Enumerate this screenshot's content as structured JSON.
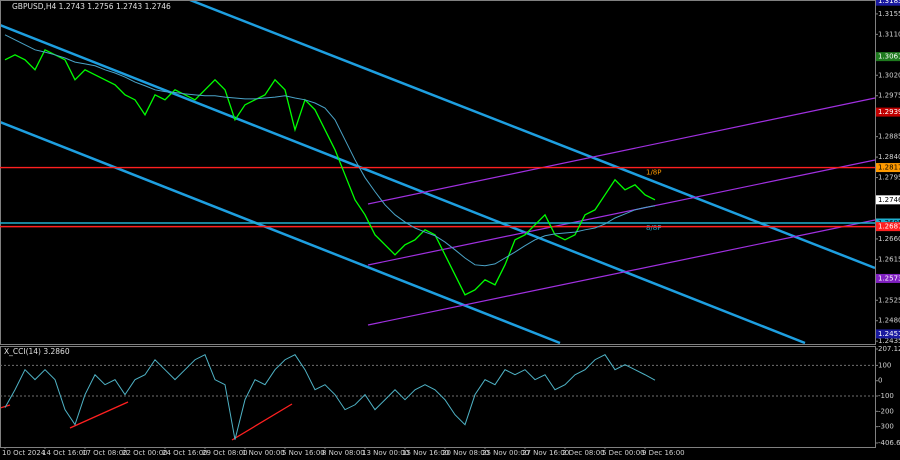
{
  "chart_data": [
    {
      "type": "line",
      "title": "GBPUSD,H4  1.2743 1.2756 1.2743 1.2746",
      "categories": [
        "10 Oct 2024",
        null,
        null,
        null,
        "14 Oct 16:00",
        null,
        null,
        null,
        "17 Oct 08:00",
        null,
        null,
        null,
        "22 Oct 00:00",
        null,
        null,
        null,
        "24 Oct 16:00",
        null,
        null,
        null,
        "29 Oct 08:00",
        null,
        null,
        null,
        "1 Nov 00:00",
        null,
        null,
        null,
        "5 Nov 16:00",
        null,
        null,
        null,
        "8 Nov 08:00",
        null,
        null,
        null,
        "13 Nov 00:00",
        null,
        null,
        null,
        "15 Nov 16:00",
        null,
        null,
        null,
        "20 Nov 08:00",
        null,
        null,
        null,
        "25 Nov 00:00",
        null,
        null,
        null,
        "27 Nov 16:00",
        null,
        null,
        null,
        "2 Dec 08:00",
        null,
        null,
        null,
        "5 Dec 00:00",
        null,
        null,
        null,
        "9 Dec 16:00",
        null
      ],
      "series": [
        {
          "color": "#00ff00",
          "values": [
            1.3054,
            1.3065,
            1.3054,
            1.3032,
            1.3076,
            1.3065,
            1.3054,
            1.301,
            1.3032,
            1.3021,
            1.301,
            1.2999,
            1.2977,
            1.2966,
            1.2933,
            1.2977,
            1.2966,
            1.2988,
            1.2977,
            1.2966,
            1.2988,
            1.301,
            1.2988,
            1.2922,
            1.2955,
            1.2966,
            1.2977,
            1.301,
            1.2988,
            1.29,
            1.2966,
            1.2944,
            1.29,
            1.2856,
            1.2801,
            1.2746,
            1.2713,
            1.2669,
            1.2647,
            1.2625,
            1.2647,
            1.2658,
            1.268,
            1.2669,
            1.2625,
            1.2581,
            1.2537,
            1.2548,
            1.257,
            1.2559,
            1.2603,
            1.2658,
            1.2669,
            1.2691,
            1.2713,
            1.2669,
            1.2658,
            1.2669,
            1.2713,
            1.2724,
            1.2757,
            1.279,
            1.2768,
            1.2779,
            1.2757,
            1.2746
          ]
        },
        {
          "color": "#4aa3c7",
          "values": [
            1.3109,
            1.3098,
            1.3087,
            1.3076,
            1.3071,
            1.3065,
            1.3058,
            1.3049,
            1.3045,
            1.3041,
            1.3032,
            1.3025,
            1.3016,
            1.3005,
            1.2997,
            1.2988,
            1.2984,
            1.2982,
            1.2979,
            1.2977,
            1.2975,
            1.2975,
            1.2972,
            1.297,
            1.2968,
            1.2968,
            1.297,
            1.2972,
            1.2975,
            1.297,
            1.2966,
            1.2959,
            1.2948,
            1.2922,
            1.2878,
            1.2834,
            1.2795,
            1.2764,
            1.2735,
            1.2713,
            1.2697,
            1.2684,
            1.2675,
            1.2667,
            1.2653,
            1.2636,
            1.2618,
            1.2603,
            1.2601,
            1.2605,
            1.2618,
            1.2631,
            1.2645,
            1.2658,
            1.2667,
            1.2671,
            1.2673,
            1.2675,
            1.268,
            1.2684,
            1.2693,
            1.2706,
            1.2715,
            1.2724,
            1.2729,
            1.2733
          ]
        }
      ],
      "ylim": [
        1.2431,
        1.3179
      ],
      "yticks": [
        1.3155,
        {
          "value": 1.311,
          "label": "1.3110"
        },
        {
          "value": 1.302,
          "label": "1.3020"
        },
        1.2975,
        1.2885,
        {
          "value": 1.284,
          "label": "1.2840"
        },
        1.2795,
        {
          "value": 1.266,
          "label": "1.2660"
        },
        1.2615,
        1.2525,
        {
          "value": 1.248,
          "label": "1.2480"
        },
        1.2435
      ],
      "levels": [
        {
          "value": 1.3183,
          "color": "#1a1aa0"
        },
        {
          "value": 1.3061,
          "color": "#1e7a1e"
        },
        {
          "value": 1.2939,
          "color": "#c00000"
        },
        {
          "value": 1.2817,
          "color": "#ff2020",
          "line": true,
          "note": "1/8P",
          "note_color": "#ff9a00",
          "box": "#ff9a00"
        },
        {
          "value": 1.2746,
          "color": "#ffffff"
        },
        {
          "value": 1.2695,
          "color": "#20b0d0",
          "line": true,
          "note": "8/8P",
          "note_color": "#20b0d0"
        },
        {
          "value": 1.2687,
          "color": "#ff2020",
          "line": true
        },
        {
          "value": 1.2573,
          "color": "#8020c0"
        },
        {
          "value": 1.2451,
          "color": "#1a1aa0"
        }
      ]
    },
    {
      "type": "line",
      "title": "X_CCI(14) 3.2860",
      "series": [
        {
          "color": "#4fb3c6",
          "values": [
            -176,
            -59,
            72,
            7,
            72,
            7,
            -189,
            -287,
            -91,
            39,
            -26,
            7,
            -91,
            7,
            39,
            137,
            72,
            7,
            72,
            137,
            170,
            7,
            -26,
            -385,
            -124,
            7,
            -26,
            72,
            137,
            170,
            72,
            -59,
            -26,
            -91,
            -189,
            -157,
            -91,
            -189,
            -124,
            -59,
            -124,
            -59,
            -26,
            -59,
            -124,
            -222,
            -287,
            -91,
            7,
            -26,
            72,
            39,
            72,
            7,
            39,
            -59,
            -26,
            39,
            72,
            137,
            170,
            72,
            105,
            72,
            39,
            3.286
          ]
        }
      ],
      "ylim": [
        -406.677,
        207.1248
      ],
      "yticks": [
        207.1248,
        100,
        0,
        -100,
        -200,
        -300,
        -406.677
      ],
      "dashed_levels": [
        100,
        -100
      ]
    }
  ]
}
